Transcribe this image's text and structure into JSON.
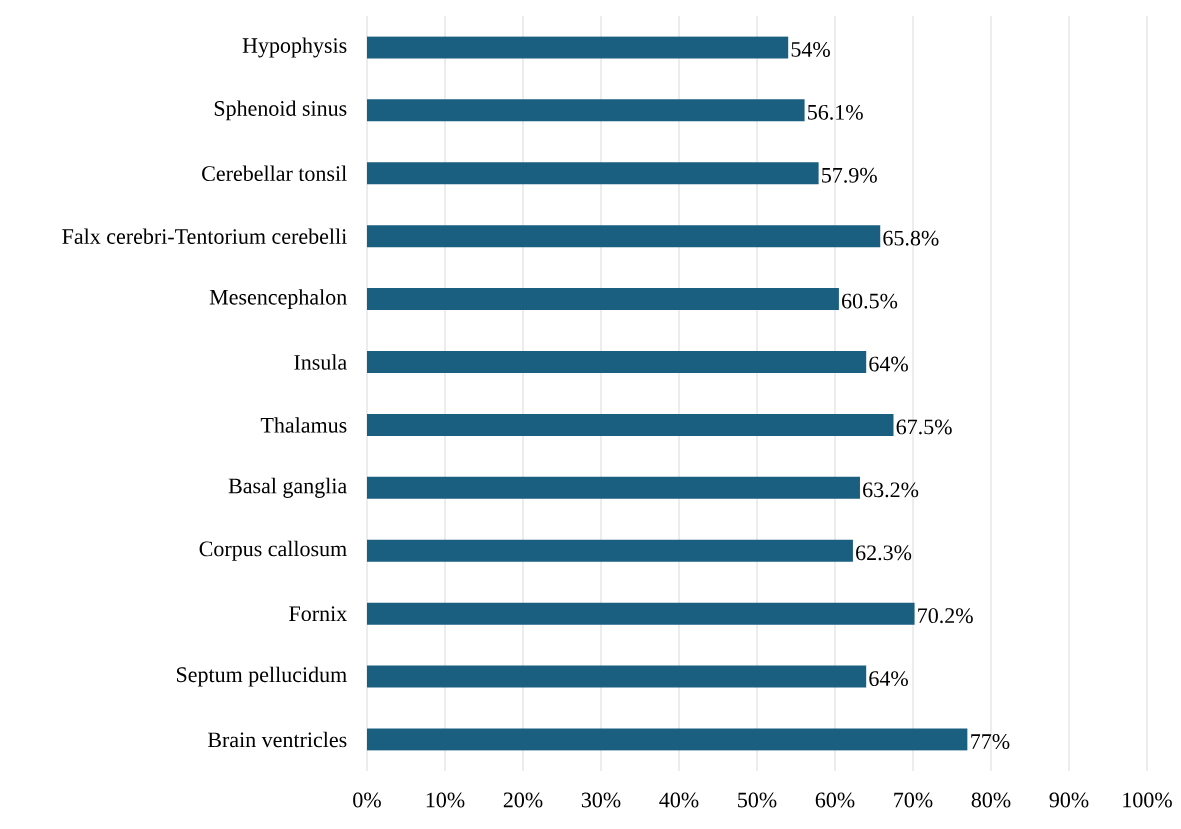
{
  "chart_data": {
    "type": "bar",
    "orientation": "horizontal",
    "categories": [
      "Hypophysis",
      "Sphenoid sinus",
      "Cerebellar tonsil",
      "Falx cerebri-Tentorium cerebelli",
      "Mesencephalon",
      "Insula",
      "Thalamus",
      "Basal ganglia",
      "Corpus callosum",
      "Fornix",
      "Septum pellucidum",
      "Brain ventricles"
    ],
    "values": [
      54,
      56.1,
      57.9,
      65.8,
      60.5,
      64,
      67.5,
      63.2,
      62.3,
      70.2,
      64,
      77
    ],
    "value_labels": [
      "54%",
      "56.1%",
      "57.9%",
      "65.8%",
      "60.5%",
      "64%",
      "67.5%",
      "63.2%",
      "62.3%",
      "70.2%",
      "64%",
      "77%"
    ],
    "color": "#1a5e80",
    "xlim": [
      0,
      100
    ],
    "xticks": [
      {
        "value": 0,
        "label": "0%"
      },
      {
        "value": 10,
        "label": "10%"
      },
      {
        "value": 20,
        "label": "20%"
      },
      {
        "value": 30,
        "label": "30%"
      },
      {
        "value": 40,
        "label": "40%"
      },
      {
        "value": 50,
        "label": "50%"
      },
      {
        "value": 60,
        "label": "60%"
      },
      {
        "value": 70,
        "label": "70%"
      },
      {
        "value": 80,
        "label": "80%"
      },
      {
        "value": 90,
        "label": "90%"
      },
      {
        "value": 100,
        "label": "100%"
      }
    ],
    "grid": "x"
  }
}
